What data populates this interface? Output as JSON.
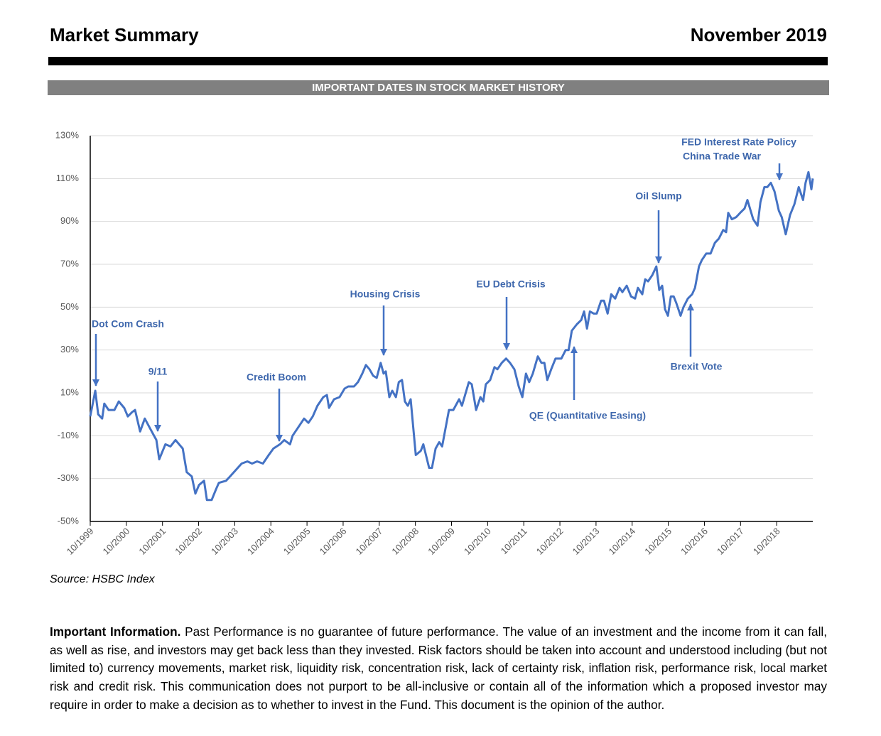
{
  "header": {
    "title": "Market Summary",
    "date": "November 2019"
  },
  "chart_data": {
    "type": "line",
    "title": "IMPORTANT DATES IN STOCK MARKET HISTORY",
    "color": "#4472c4",
    "grid": true,
    "xlim": [
      1999.75,
      2019.75
    ],
    "xticks": [
      {
        "value": 1999.75,
        "label": "10/1999"
      },
      {
        "value": 2000.75,
        "label": "10/2000"
      },
      {
        "value": 2001.75,
        "label": "10/2001"
      },
      {
        "value": 2002.75,
        "label": "10/2002"
      },
      {
        "value": 2003.75,
        "label": "10/2003"
      },
      {
        "value": 2004.75,
        "label": "10/2004"
      },
      {
        "value": 2005.75,
        "label": "10/2005"
      },
      {
        "value": 2006.75,
        "label": "10/2006"
      },
      {
        "value": 2007.75,
        "label": "10/2007"
      },
      {
        "value": 2008.75,
        "label": "10/2008"
      },
      {
        "value": 2009.75,
        "label": "10/2009"
      },
      {
        "value": 2010.75,
        "label": "10/2010"
      },
      {
        "value": 2011.75,
        "label": "10/2011"
      },
      {
        "value": 2012.75,
        "label": "10/2012"
      },
      {
        "value": 2013.75,
        "label": "10/2013"
      },
      {
        "value": 2014.75,
        "label": "10/2014"
      },
      {
        "value": 2015.75,
        "label": "10/2015"
      },
      {
        "value": 2016.75,
        "label": "10/2016"
      },
      {
        "value": 2017.75,
        "label": "10/2017"
      },
      {
        "value": 2018.75,
        "label": "10/2018"
      }
    ],
    "ylim": [
      -50,
      130
    ],
    "yticks": [
      {
        "value": -50,
        "label": "-50%"
      },
      {
        "value": -30,
        "label": "-30%"
      },
      {
        "value": -10,
        "label": "-10%"
      },
      {
        "value": 10,
        "label": "10%"
      },
      {
        "value": 30,
        "label": "30%"
      },
      {
        "value": 50,
        "label": "50%"
      },
      {
        "value": 70,
        "label": "70%"
      },
      {
        "value": 90,
        "label": "90%"
      },
      {
        "value": 110,
        "label": "110%"
      },
      {
        "value": 130,
        "label": "130%"
      }
    ],
    "x": [
      1999.75,
      1999.89,
      1999.97,
      2000.08,
      2000.14,
      2000.26,
      2000.42,
      2000.54,
      2000.69,
      2000.79,
      2000.91,
      2000.99,
      2001.13,
      2001.26,
      2001.42,
      2001.58,
      2001.66,
      2001.83,
      2001.97,
      2002.11,
      2002.31,
      2002.42,
      2002.56,
      2002.66,
      2002.76,
      2002.9,
      2002.98,
      2003.11,
      2003.23,
      2003.31,
      2003.51,
      2003.62,
      2003.78,
      2003.94,
      2004.1,
      2004.23,
      2004.37,
      2004.53,
      2004.69,
      2004.82,
      2005.0,
      2005.12,
      2005.28,
      2005.35,
      2005.51,
      2005.67,
      2005.79,
      2005.91,
      2006.04,
      2006.2,
      2006.3,
      2006.36,
      2006.5,
      2006.65,
      2006.79,
      2006.89,
      2007.05,
      2007.16,
      2007.28,
      2007.38,
      2007.48,
      2007.58,
      2007.68,
      2007.79,
      2007.87,
      2007.93,
      2008.03,
      2008.11,
      2008.21,
      2008.29,
      2008.38,
      2008.46,
      2008.54,
      2008.62,
      2008.76,
      2008.9,
      2008.97,
      2009.13,
      2009.21,
      2009.31,
      2009.41,
      2009.49,
      2009.68,
      2009.8,
      2009.96,
      2010.04,
      2010.23,
      2010.31,
      2010.43,
      2010.55,
      2010.63,
      2010.7,
      2010.82,
      2010.94,
      2011.02,
      2011.14,
      2011.26,
      2011.37,
      2011.49,
      2011.61,
      2011.71,
      2011.81,
      2011.9,
      2012.0,
      2012.14,
      2012.24,
      2012.32,
      2012.4,
      2012.51,
      2012.63,
      2012.79,
      2012.91,
      2012.99,
      2013.08,
      2013.22,
      2013.34,
      2013.42,
      2013.5,
      2013.58,
      2013.69,
      2013.77,
      2013.89,
      2013.97,
      2014.07,
      2014.17,
      2014.28,
      2014.4,
      2014.48,
      2014.6,
      2014.72,
      2014.83,
      2014.91,
      2015.03,
      2015.11,
      2015.19,
      2015.31,
      2015.42,
      2015.5,
      2015.58,
      2015.66,
      2015.74,
      2015.82,
      2015.9,
      2015.97,
      2016.09,
      2016.17,
      2016.29,
      2016.41,
      2016.49,
      2016.6,
      2016.68,
      2016.8,
      2016.92,
      2017.04,
      2017.15,
      2017.27,
      2017.35,
      2017.41,
      2017.51,
      2017.63,
      2017.74,
      2017.86,
      2017.94,
      2018.1,
      2018.22,
      2018.3,
      2018.41,
      2018.49,
      2018.59,
      2018.69,
      2018.81,
      2018.89,
      2019.0,
      2019.12,
      2019.24,
      2019.36,
      2019.48,
      2019.55,
      2019.63,
      2019.71,
      2019.75
    ],
    "values": [
      -1,
      11,
      0,
      -2,
      5,
      2,
      2,
      6,
      3,
      -1,
      1,
      2,
      -8,
      -2,
      -7,
      -12,
      -21,
      -14,
      -15,
      -12,
      -16,
      -27,
      -29,
      -37,
      -33,
      -31,
      -40,
      -40,
      -35,
      -32,
      -31,
      -29,
      -26,
      -23,
      -22,
      -23,
      -22,
      -23,
      -19,
      -16,
      -14,
      -12,
      -14,
      -10,
      -6,
      -2,
      -4,
      -1,
      4,
      8,
      9,
      3,
      7,
      8,
      12,
      13,
      13,
      15,
      19,
      23,
      21,
      18,
      17,
      24,
      19,
      20,
      8,
      11,
      8,
      15,
      16,
      6,
      4,
      7,
      -19,
      -17,
      -14,
      -25,
      -25,
      -16,
      -13,
      -15,
      2,
      2,
      7,
      4,
      15,
      14,
      2,
      8,
      6,
      14,
      16,
      22,
      21,
      24,
      26,
      24,
      21,
      13,
      8,
      19,
      15,
      19,
      27,
      24,
      24,
      16,
      21,
      26,
      26,
      30,
      30,
      39,
      42,
      44,
      48,
      40,
      48,
      47,
      47,
      53,
      53,
      47,
      56,
      54,
      59,
      57,
      60,
      55,
      54,
      59,
      56,
      63,
      62,
      65,
      69,
      58,
      60,
      49,
      46,
      55,
      55,
      52,
      46,
      50,
      54,
      56,
      59,
      69,
      72,
      75,
      75,
      80,
      82,
      86,
      85,
      94,
      91,
      92,
      94,
      96,
      100,
      91,
      88,
      99,
      106,
      106,
      108,
      104,
      95,
      92,
      84,
      93,
      98,
      106,
      100,
      108,
      113,
      105,
      110
    ],
    "annotations": [
      "Dot Com Crash",
      "9/11",
      "Credit Boom",
      "Housing Crisis",
      "EU Debt Crisis",
      "QE (Quantitative Easing)",
      "Oil Slump",
      "Brexit Vote",
      "FED Interest Rate Policy",
      "China Trade War"
    ]
  },
  "source": "Source: HSBC Index",
  "disclaimer": {
    "lead": "Important Information.",
    "text": "Past Performance is no guarantee of future performance. The value of an investment and the income from it can fall, as well as rise, and investors may get back less than they invested. Risk factors should be taken into account and understood including (but not limited to) currency movements, market risk, liquidity risk, concentration risk, lack of certainty risk, inflation risk, performance risk, local market risk and credit risk. This communication does not purport to be all-inclusive or contain all of the information which a proposed investor may require in order to make a decision as to whether to invest in the Fund. This document is the opinion of the author."
  }
}
